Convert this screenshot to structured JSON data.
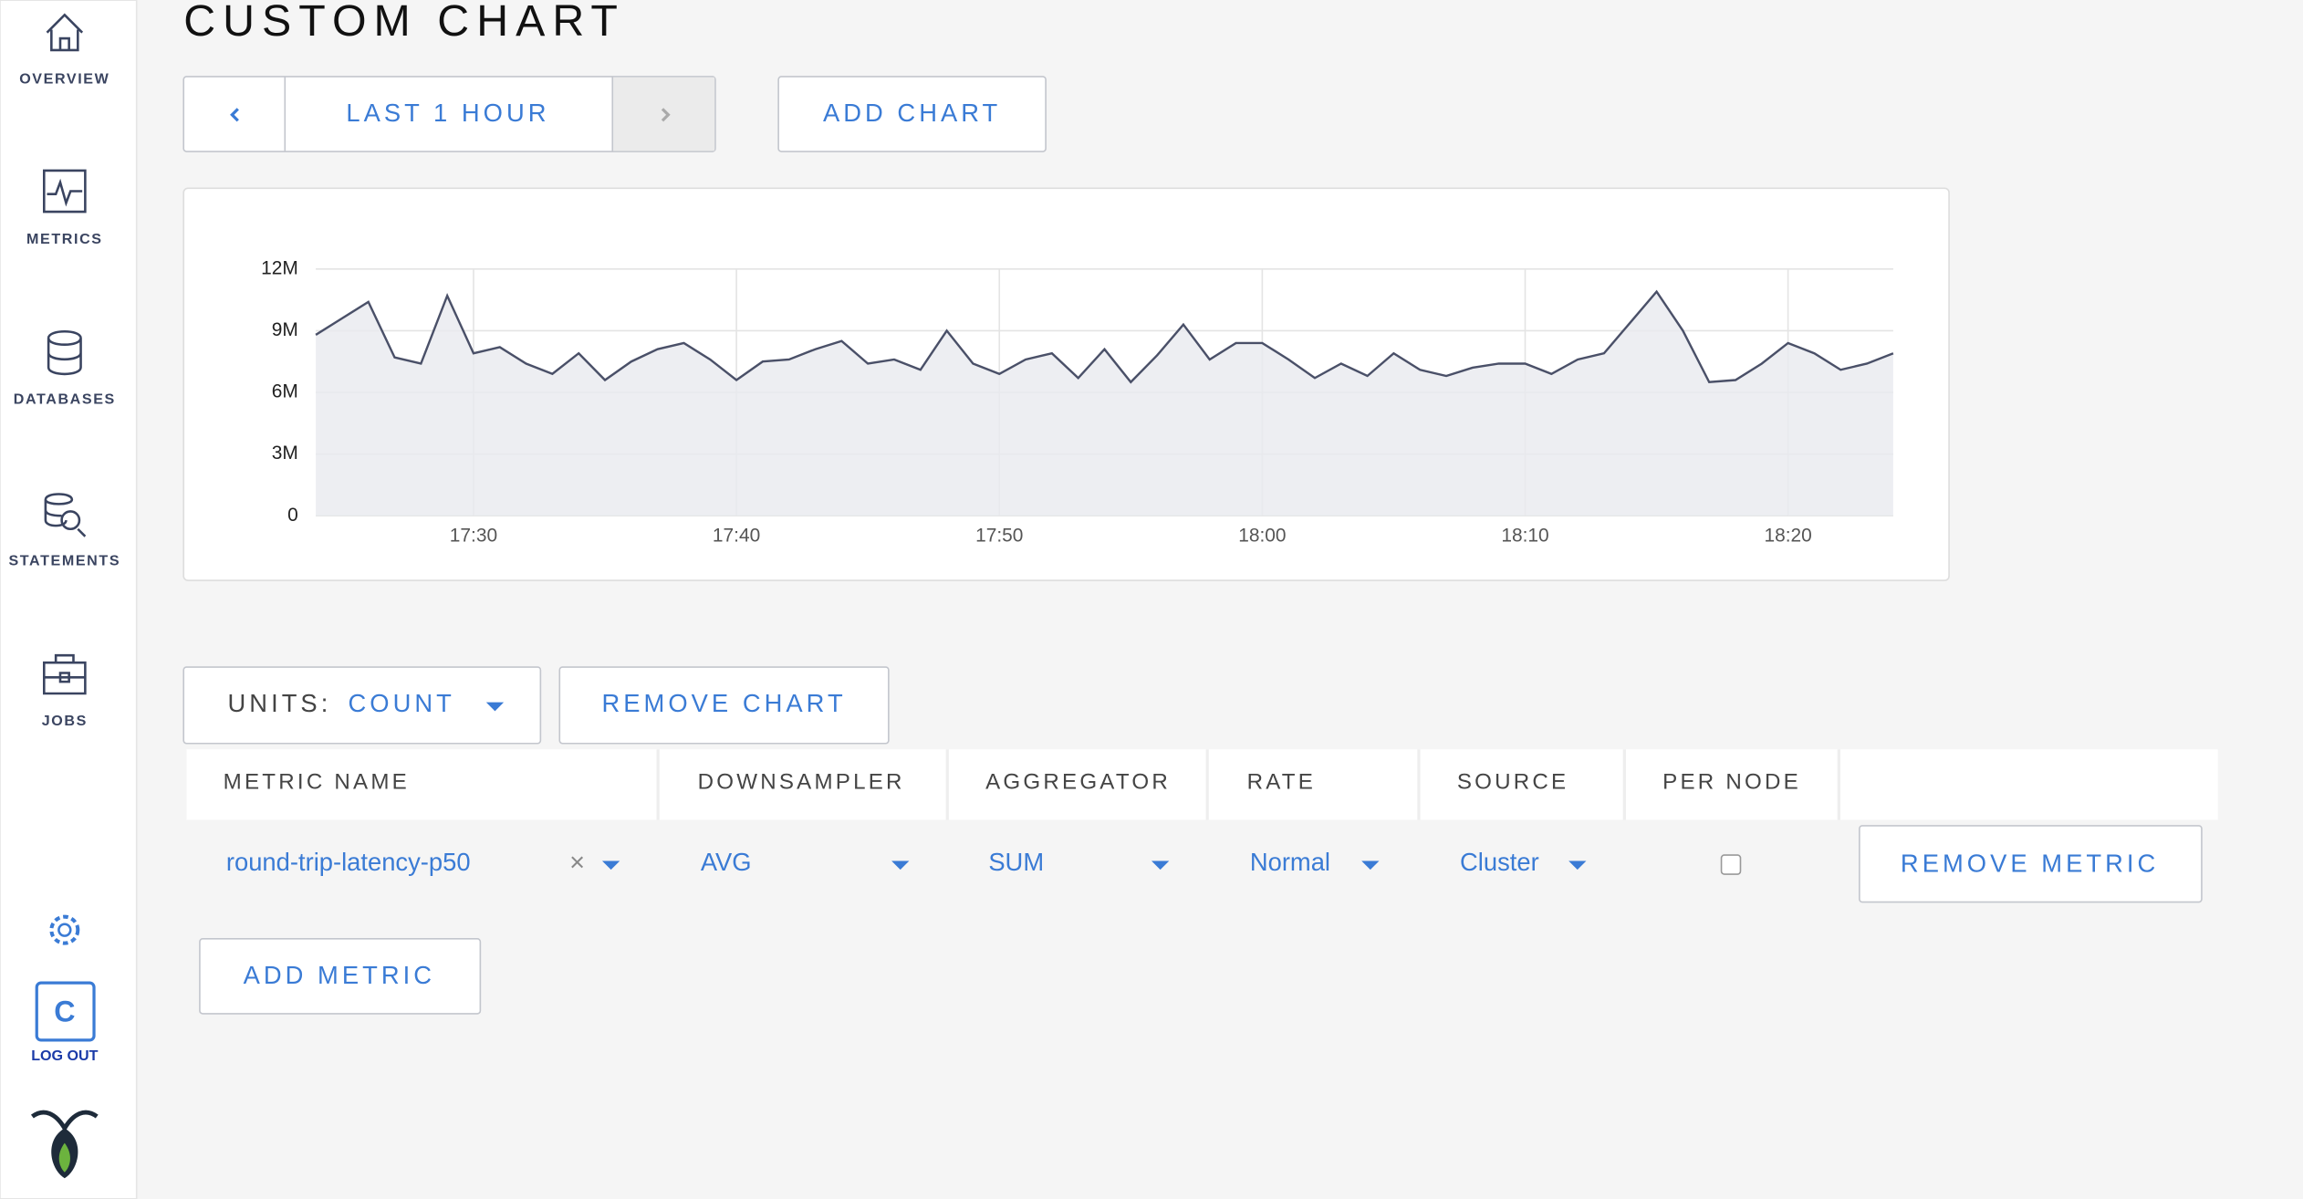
{
  "nav": {
    "items": [
      {
        "label": "OVERVIEW"
      },
      {
        "label": "METRICS"
      },
      {
        "label": "DATABASES"
      },
      {
        "label": "STATEMENTS"
      },
      {
        "label": "JOBS"
      }
    ],
    "avatar": "C",
    "logout": "LOG OUT"
  },
  "header": {
    "title": "CUSTOM CHART"
  },
  "toolbar": {
    "range": "LAST 1 HOUR",
    "add_chart": "ADD CHART"
  },
  "chart_data": {
    "type": "line",
    "x": [
      "17:24",
      "17:25",
      "17:26",
      "17:27",
      "17:28",
      "17:29",
      "17:30",
      "17:31",
      "17:32",
      "17:33",
      "17:34",
      "17:35",
      "17:36",
      "17:37",
      "17:38",
      "17:39",
      "17:40",
      "17:41",
      "17:42",
      "17:43",
      "17:44",
      "17:45",
      "17:46",
      "17:47",
      "17:48",
      "17:49",
      "17:50",
      "17:51",
      "17:52",
      "17:53",
      "17:54",
      "17:55",
      "17:56",
      "17:57",
      "17:58",
      "17:59",
      "18:00",
      "18:01",
      "18:02",
      "18:03",
      "18:04",
      "18:05",
      "18:06",
      "18:07",
      "18:08",
      "18:09",
      "18:10",
      "18:11",
      "18:12",
      "18:13",
      "18:14",
      "18:15",
      "18:16",
      "18:17",
      "18:18",
      "18:19",
      "18:20",
      "18:21",
      "18:22",
      "18:23",
      "18:24"
    ],
    "series": [
      {
        "color": "#4a5068",
        "fill": "#e9eaef",
        "values": [
          8800000,
          9600000,
          10400000,
          7700000,
          7400000,
          10700000,
          7900000,
          8200000,
          7400000,
          6900000,
          7900000,
          6600000,
          7500000,
          8100000,
          8400000,
          7600000,
          6600000,
          7500000,
          7600000,
          8100000,
          8500000,
          7400000,
          7600000,
          7100000,
          9000000,
          7400000,
          6900000,
          7600000,
          7900000,
          6700000,
          8100000,
          6500000,
          7800000,
          9300000,
          7600000,
          8400000,
          8400000,
          7600000,
          6700000,
          7400000,
          6800000,
          7900000,
          7100000,
          6800000,
          7200000,
          7400000,
          7400000,
          6900000,
          7600000,
          7900000,
          9400000,
          10900000,
          9000000,
          6500000,
          6600000,
          7400000,
          8400000,
          7900000,
          7100000,
          7400000,
          7900000
        ]
      }
    ],
    "xlim": [
      "17:24",
      "18:24"
    ],
    "xticks": [
      "17:30",
      "17:40",
      "17:50",
      "18:00",
      "18:10",
      "18:20"
    ],
    "ylim": [
      0,
      12000000
    ],
    "yticks": [
      0,
      {
        "value": 3000000,
        "label": "3M"
      },
      {
        "value": 6000000,
        "label": "6M"
      },
      {
        "value": 9000000,
        "label": "9M"
      },
      {
        "value": 12000000,
        "label": "12M"
      }
    ],
    "grid": true
  },
  "controls": {
    "units_label": "UNITS:",
    "units_value": "COUNT",
    "remove_chart": "REMOVE CHART"
  },
  "table": {
    "headers": [
      "METRIC NAME",
      "DOWNSAMPLER",
      "AGGREGATOR",
      "RATE",
      "SOURCE",
      "PER NODE"
    ],
    "rows": [
      [
        "round-trip-latency-p50",
        "AVG",
        "SUM",
        "Normal",
        "Cluster",
        false
      ]
    ],
    "remove_metric": "REMOVE METRIC"
  },
  "add_metric": "ADD METRIC"
}
